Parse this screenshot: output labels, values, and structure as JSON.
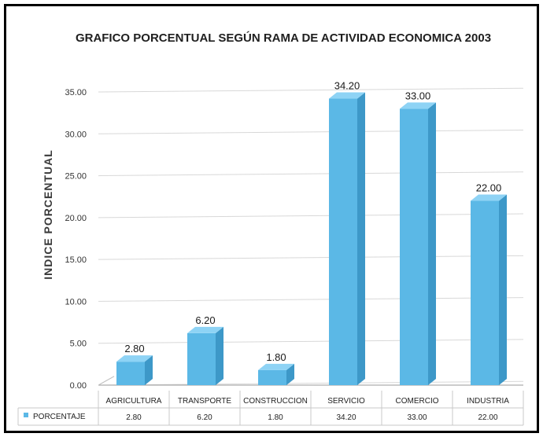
{
  "chart_data": {
    "type": "bar",
    "title": "GRAFICO PORCENTUAL SEGÚN RAMA DE ACTIVIDAD ECONOMICA 2003",
    "ylabel": "INDICE PORCENTUAL",
    "xlabel": "",
    "categories": [
      "AGRICULTURA",
      "TRANSPORTE",
      "CONSTRUCCION",
      "SERVICIO",
      "COMERCIO",
      "INDUSTRIA"
    ],
    "series": [
      {
        "name": "PORCENTAJE",
        "values": [
          2.8,
          6.2,
          1.8,
          34.2,
          33.0,
          22.0
        ],
        "value_labels": [
          "2.80",
          "6.20",
          "1.80",
          "34.20",
          "33.00",
          "22.00"
        ]
      }
    ],
    "ylim": [
      0,
      35
    ],
    "yticks": [
      "0.00",
      "5.00",
      "10.00",
      "15.00",
      "20.00",
      "25.00",
      "30.00",
      "35.00"
    ],
    "grid": true,
    "legend": "data table below chart",
    "colors": {
      "bar_front": "#5bb8e6",
      "bar_side": "#3d98c8",
      "bar_top": "#8ed3f5",
      "grid": "#d8d8d8"
    }
  }
}
